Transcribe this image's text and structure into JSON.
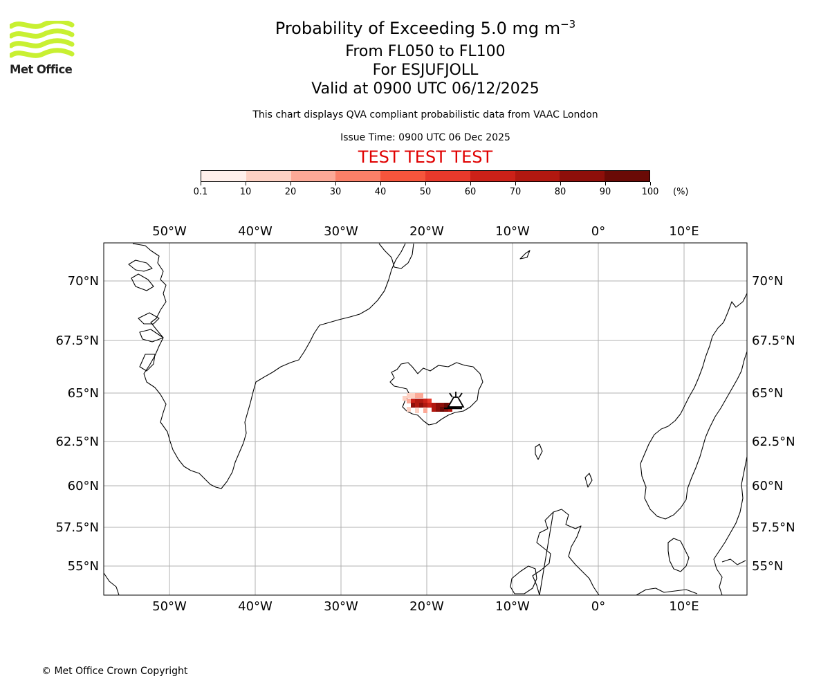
{
  "header": {
    "logo_text": "Met Office",
    "title": "Probability of Exceeding 5.0 mg m",
    "title_exponent": "−3",
    "flight_levels": "From FL050 to FL100",
    "volcano": "For ESJUFJOLL",
    "valid_time": "Valid at 0900 UTC 06/12/2025",
    "note": "This chart displays QVA compliant probabilistic data from VAAC London",
    "issue_time": "Issue Time: 0900 UTC 06 Dec 2025",
    "banner": "TEST TEST TEST"
  },
  "colorbar": {
    "unit": "(%)",
    "tick_labels": [
      "0.1",
      "10",
      "20",
      "30",
      "40",
      "50",
      "60",
      "70",
      "80",
      "90",
      "100"
    ],
    "colors": [
      "#fff0eb",
      "#fdd1c3",
      "#fca997",
      "#fb8068",
      "#f6553c",
      "#e8392b",
      "#cc2118",
      "#b11810",
      "#8e0f0a",
      "#6a0a06"
    ]
  },
  "map": {
    "lon_labels": [
      "50°W",
      "40°W",
      "30°W",
      "20°W",
      "10°W",
      "0°",
      "10°E"
    ],
    "lat_labels": [
      "70°N",
      "67.5°N",
      "65°N",
      "62.5°N",
      "60°N",
      "57.5°N",
      "55°N"
    ],
    "grid_color": "#b0b0b0",
    "volcano_icon": "volcano-icon"
  },
  "footer": {
    "copyright": "© Met Office Crown Copyright"
  }
}
